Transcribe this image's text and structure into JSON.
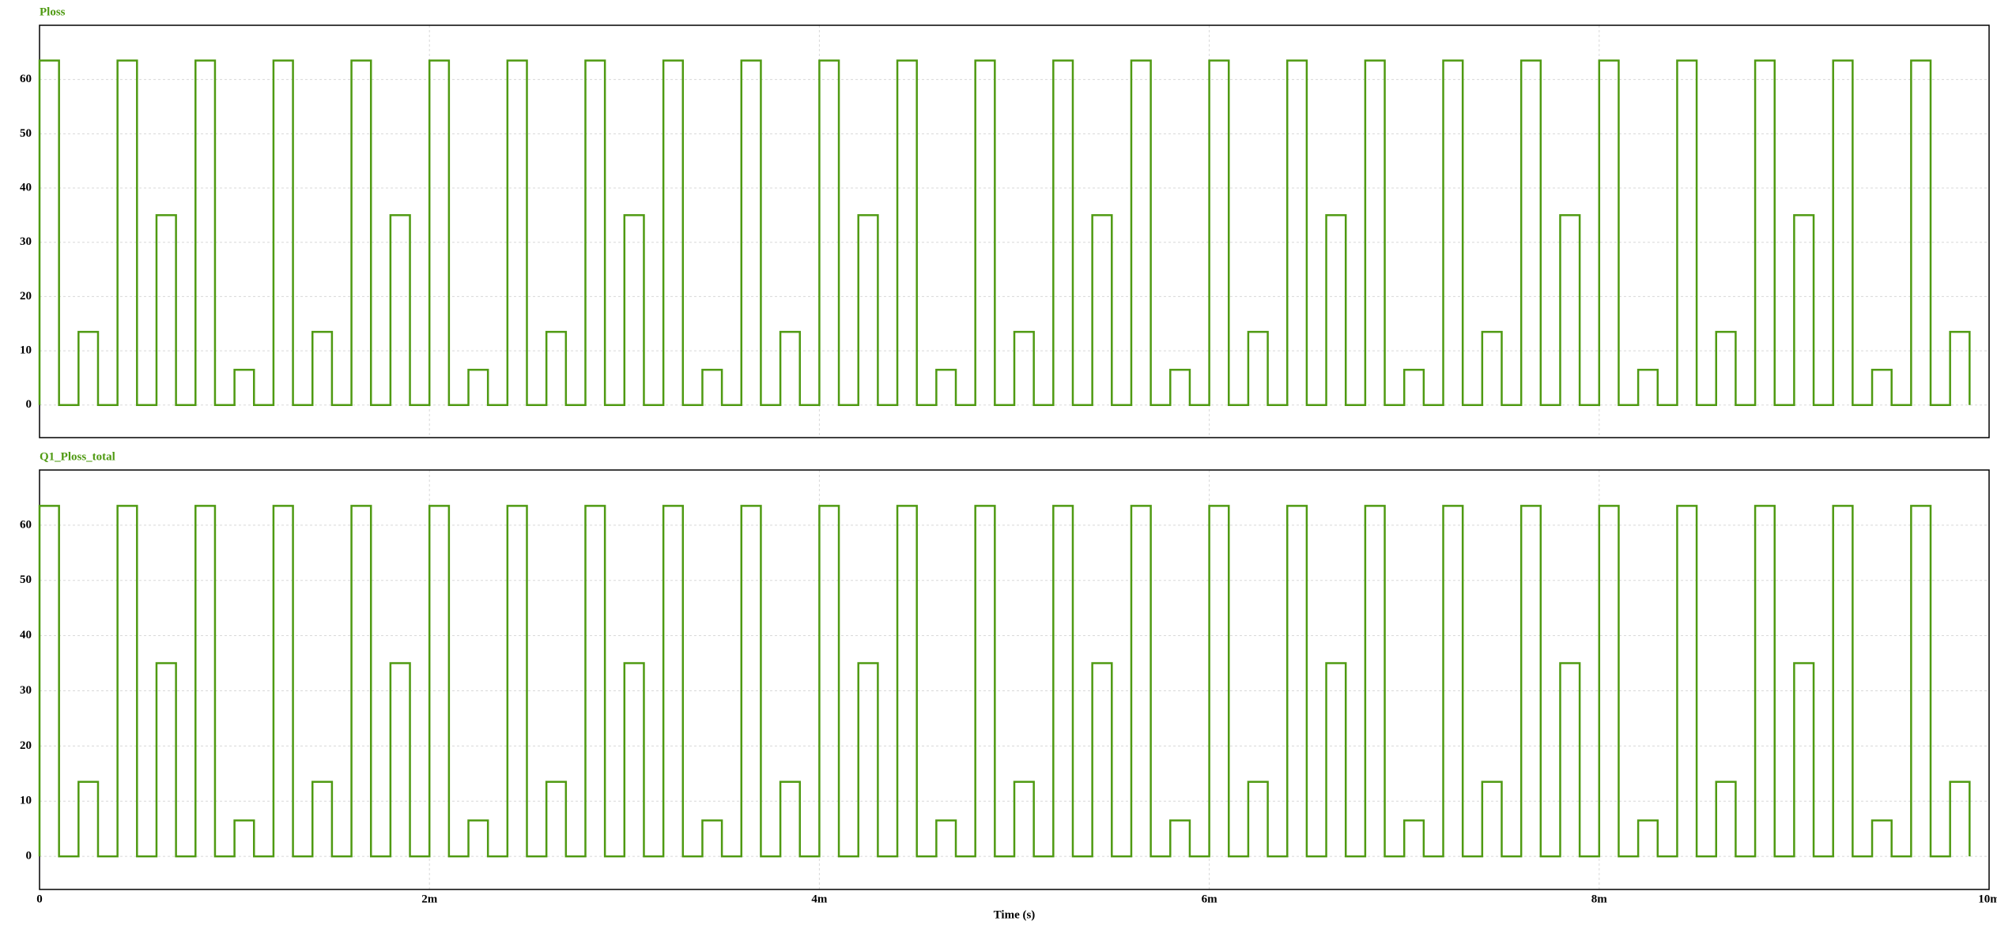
{
  "chart_data": [
    {
      "type": "line",
      "title": "Ploss",
      "xlim": [
        0,
        0.01
      ],
      "ylim": [
        -6,
        70
      ],
      "xticks": [
        0,
        0.002,
        0.004,
        0.006,
        0.008,
        0.01
      ],
      "yticks": [
        0,
        10,
        20,
        30,
        40,
        50,
        60
      ],
      "grid": true,
      "x": [
        0,
        0,
        0.0001,
        0.0001,
        0.0002,
        0.0002,
        0.0003,
        0.0003,
        0.0004,
        0.0004,
        0.0005,
        0.0005,
        0.0006,
        0.0006,
        0.0007,
        0.0007,
        0.0008,
        0.0008,
        0.0009,
        0.0009,
        0.001,
        0.001,
        0.0011,
        0.0011,
        0.0012,
        0.0012,
        0.0013,
        0.0013,
        0.0014,
        0.0014,
        0.0015,
        0.0015,
        0.0016,
        0.0016,
        0.0017,
        0.0017,
        0.0018,
        0.0018,
        0.0019,
        0.0019,
        0.002,
        0.002,
        0.0021,
        0.0021,
        0.0022,
        0.0022,
        0.0023,
        0.0023,
        0.0024,
        0.0024,
        0.0025,
        0.0025,
        0.0026,
        0.0026,
        0.0027,
        0.0027,
        0.0028,
        0.0028,
        0.0029,
        0.0029,
        0.003,
        0.003,
        0.0031,
        0.0031,
        0.0032,
        0.0032,
        0.0033,
        0.0033,
        0.0034,
        0.0034,
        0.0035,
        0.0035,
        0.0036,
        0.0036,
        0.0037,
        0.0037,
        0.0038,
        0.0038,
        0.0039,
        0.0039,
        0.004,
        0.004,
        0.0041,
        0.0041,
        0.0042,
        0.0042,
        0.0043,
        0.0043,
        0.0044,
        0.0044,
        0.0045,
        0.0045,
        0.0046,
        0.0046,
        0.0047,
        0.0047,
        0.0048,
        0.0048,
        0.0049,
        0.0049,
        0.005,
        0.005,
        0.0051,
        0.0051,
        0.0052,
        0.0052,
        0.0053,
        0.0053,
        0.0054,
        0.0054,
        0.0055,
        0.0055,
        0.0056,
        0.0056,
        0.0057,
        0.0057,
        0.0058,
        0.0058,
        0.0059,
        0.0059,
        0.006,
        0.006,
        0.0061,
        0.0061,
        0.0062,
        0.0062,
        0.0063,
        0.0063,
        0.0064,
        0.0064,
        0.0065,
        0.0065,
        0.0066,
        0.0066,
        0.0067,
        0.0067,
        0.0068,
        0.0068,
        0.0069,
        0.0069,
        0.007,
        0.007,
        0.0071,
        0.0071,
        0.0072,
        0.0072,
        0.0073,
        0.0073,
        0.0074,
        0.0074,
        0.0075,
        0.0075,
        0.0076,
        0.0076,
        0.0077,
        0.0077,
        0.0078,
        0.0078,
        0.0079,
        0.0079,
        0.008,
        0.008,
        0.0081,
        0.0081,
        0.0082,
        0.0082,
        0.0083,
        0.0083,
        0.0084,
        0.0084,
        0.0085,
        0.0085,
        0.0086,
        0.0086,
        0.0087,
        0.0087,
        0.0088,
        0.0088,
        0.0089,
        0.0089,
        0.009,
        0.009,
        0.0091,
        0.0091,
        0.0092,
        0.0092,
        0.0093,
        0.0093,
        0.0094,
        0.0094,
        0.0095,
        0.0095,
        0.0096,
        0.0096,
        0.0097,
        0.0097,
        0.0098,
        0.0098,
        0.0099,
        0.0099
      ],
      "series": [
        {
          "name": "Ploss",
          "color": "#4f9a12",
          "values": [
            0,
            63.5,
            63.5,
            0,
            0,
            13.5,
            13.5,
            0,
            0,
            63.5,
            63.5,
            0,
            0,
            35,
            35,
            0,
            0,
            63.5,
            63.5,
            0,
            0,
            6.5,
            6.5,
            0,
            0,
            63.5,
            63.5,
            0,
            0,
            13.5,
            13.5,
            0,
            0,
            63.5,
            63.5,
            0,
            0,
            35,
            35,
            0,
            0,
            63.5,
            63.5,
            0,
            0,
            6.5,
            6.5,
            0,
            0,
            63.5,
            63.5,
            0,
            0,
            13.5,
            13.5,
            0,
            0,
            63.5,
            63.5,
            0,
            0,
            35,
            35,
            0,
            0,
            63.5,
            63.5,
            0,
            0,
            6.5,
            6.5,
            0,
            0,
            63.5,
            63.5,
            0,
            0,
            13.5,
            13.5,
            0,
            0,
            63.5,
            63.5,
            0,
            0,
            35,
            35,
            0,
            0,
            63.5,
            63.5,
            0,
            0,
            6.5,
            6.5,
            0,
            0,
            63.5,
            63.5,
            0,
            0,
            13.5,
            13.5,
            0,
            0,
            63.5,
            63.5,
            0,
            0,
            35,
            35,
            0,
            0,
            63.5,
            63.5,
            0,
            0,
            6.5,
            6.5,
            0,
            0,
            63.5,
            63.5,
            0,
            0,
            13.5,
            13.5,
            0,
            0,
            63.5,
            63.5,
            0,
            0,
            35,
            35,
            0,
            0,
            63.5,
            63.5,
            0,
            0,
            6.5,
            6.5,
            0,
            0,
            63.5,
            63.5,
            0,
            0,
            13.5,
            13.5,
            0,
            0,
            63.5,
            63.5,
            0,
            0,
            35,
            35,
            0,
            0,
            63.5,
            63.5,
            0,
            0,
            6.5,
            6.5,
            0,
            0,
            63.5,
            63.5,
            0,
            0,
            13.5,
            13.5,
            0,
            0,
            63.5,
            63.5,
            0,
            0,
            35,
            35,
            0,
            0,
            63.5,
            63.5,
            0,
            0,
            6.5,
            6.5,
            0,
            0,
            63.5,
            63.5,
            0,
            0,
            13.5,
            13.5,
            0
          ]
        }
      ]
    },
    {
      "type": "line",
      "title": "Q1_Ploss_total",
      "x_label": "Time (s)",
      "xlim": [
        0,
        0.01
      ],
      "ylim": [
        -6,
        70
      ],
      "xticks": [
        0,
        {
          "value": 0.002,
          "label": "2m"
        },
        {
          "value": 0.004,
          "label": "4m"
        },
        {
          "value": 0.006,
          "label": "6m"
        },
        {
          "value": 0.008,
          "label": "8m"
        },
        {
          "value": 0.01,
          "label": "10m"
        }
      ],
      "yticks": [
        0,
        10,
        20,
        30,
        40,
        50,
        60
      ],
      "grid": true,
      "x": [
        0,
        0,
        0.0001,
        0.0001,
        0.0002,
        0.0002,
        0.0003,
        0.0003,
        0.0004,
        0.0004,
        0.0005,
        0.0005,
        0.0006,
        0.0006,
        0.0007,
        0.0007,
        0.0008,
        0.0008,
        0.0009,
        0.0009,
        0.001,
        0.001,
        0.0011,
        0.0011,
        0.0012,
        0.0012,
        0.0013,
        0.0013,
        0.0014,
        0.0014,
        0.0015,
        0.0015,
        0.0016,
        0.0016,
        0.0017,
        0.0017,
        0.0018,
        0.0018,
        0.0019,
        0.0019,
        0.002,
        0.002,
        0.0021,
        0.0021,
        0.0022,
        0.0022,
        0.0023,
        0.0023,
        0.0024,
        0.0024,
        0.0025,
        0.0025,
        0.0026,
        0.0026,
        0.0027,
        0.0027,
        0.0028,
        0.0028,
        0.0029,
        0.0029,
        0.003,
        0.003,
        0.0031,
        0.0031,
        0.0032,
        0.0032,
        0.0033,
        0.0033,
        0.0034,
        0.0034,
        0.0035,
        0.0035,
        0.0036,
        0.0036,
        0.0037,
        0.0037,
        0.0038,
        0.0038,
        0.0039,
        0.0039,
        0.004,
        0.004,
        0.0041,
        0.0041,
        0.0042,
        0.0042,
        0.0043,
        0.0043,
        0.0044,
        0.0044,
        0.0045,
        0.0045,
        0.0046,
        0.0046,
        0.0047,
        0.0047,
        0.0048,
        0.0048,
        0.0049,
        0.0049,
        0.005,
        0.005,
        0.0051,
        0.0051,
        0.0052,
        0.0052,
        0.0053,
        0.0053,
        0.0054,
        0.0054,
        0.0055,
        0.0055,
        0.0056,
        0.0056,
        0.0057,
        0.0057,
        0.0058,
        0.0058,
        0.0059,
        0.0059,
        0.006,
        0.006,
        0.0061,
        0.0061,
        0.0062,
        0.0062,
        0.0063,
        0.0063,
        0.0064,
        0.0064,
        0.0065,
        0.0065,
        0.0066,
        0.0066,
        0.0067,
        0.0067,
        0.0068,
        0.0068,
        0.0069,
        0.0069,
        0.007,
        0.007,
        0.0071,
        0.0071,
        0.0072,
        0.0072,
        0.0073,
        0.0073,
        0.0074,
        0.0074,
        0.0075,
        0.0075,
        0.0076,
        0.0076,
        0.0077,
        0.0077,
        0.0078,
        0.0078,
        0.0079,
        0.0079,
        0.008,
        0.008,
        0.0081,
        0.0081,
        0.0082,
        0.0082,
        0.0083,
        0.0083,
        0.0084,
        0.0084,
        0.0085,
        0.0085,
        0.0086,
        0.0086,
        0.0087,
        0.0087,
        0.0088,
        0.0088,
        0.0089,
        0.0089,
        0.009,
        0.009,
        0.0091,
        0.0091,
        0.0092,
        0.0092,
        0.0093,
        0.0093,
        0.0094,
        0.0094,
        0.0095,
        0.0095,
        0.0096,
        0.0096,
        0.0097,
        0.0097,
        0.0098,
        0.0098,
        0.0099,
        0.0099
      ],
      "series": [
        {
          "name": "Q1_Ploss_total",
          "color": "#4f9a12",
          "values": [
            0,
            63.5,
            63.5,
            0,
            0,
            13.5,
            13.5,
            0,
            0,
            63.5,
            63.5,
            0,
            0,
            35,
            35,
            0,
            0,
            63.5,
            63.5,
            0,
            0,
            6.5,
            6.5,
            0,
            0,
            63.5,
            63.5,
            0,
            0,
            13.5,
            13.5,
            0,
            0,
            63.5,
            63.5,
            0,
            0,
            35,
            35,
            0,
            0,
            63.5,
            63.5,
            0,
            0,
            6.5,
            6.5,
            0,
            0,
            63.5,
            63.5,
            0,
            0,
            13.5,
            13.5,
            0,
            0,
            63.5,
            63.5,
            0,
            0,
            35,
            35,
            0,
            0,
            63.5,
            63.5,
            0,
            0,
            6.5,
            6.5,
            0,
            0,
            63.5,
            63.5,
            0,
            0,
            13.5,
            13.5,
            0,
            0,
            63.5,
            63.5,
            0,
            0,
            35,
            35,
            0,
            0,
            63.5,
            63.5,
            0,
            0,
            6.5,
            6.5,
            0,
            0,
            63.5,
            63.5,
            0,
            0,
            13.5,
            13.5,
            0,
            0,
            63.5,
            63.5,
            0,
            0,
            35,
            35,
            0,
            0,
            63.5,
            63.5,
            0,
            0,
            6.5,
            6.5,
            0,
            0,
            63.5,
            63.5,
            0,
            0,
            13.5,
            13.5,
            0,
            0,
            63.5,
            63.5,
            0,
            0,
            35,
            35,
            0,
            0,
            63.5,
            63.5,
            0,
            0,
            6.5,
            6.5,
            0,
            0,
            63.5,
            63.5,
            0,
            0,
            13.5,
            13.5,
            0,
            0,
            63.5,
            63.5,
            0,
            0,
            35,
            35,
            0,
            0,
            63.5,
            63.5,
            0,
            0,
            6.5,
            6.5,
            0,
            0,
            63.5,
            63.5,
            0,
            0,
            13.5,
            13.5,
            0,
            0,
            63.5,
            63.5,
            0,
            0,
            35,
            35,
            0,
            0,
            63.5,
            63.5,
            0,
            0,
            6.5,
            6.5,
            0,
            0,
            63.5,
            63.5,
            0,
            0,
            13.5,
            13.5,
            0
          ]
        }
      ]
    }
  ]
}
